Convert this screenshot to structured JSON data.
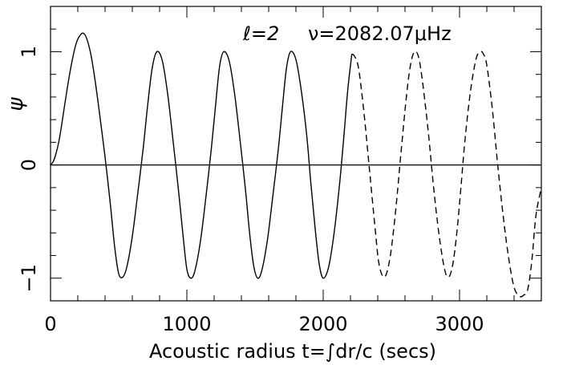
{
  "chart_data": {
    "type": "line",
    "title": "",
    "annotation": {
      "degree_label": "ℓ=2",
      "frequency_label": "ν=2082.07μHz"
    },
    "xlabel": "Acoustic radius t=∫dr/c (secs)",
    "ylabel": "ψ",
    "xlim": [
      0,
      3600
    ],
    "ylim": [
      -1.2,
      1.4
    ],
    "x_ticks": [
      {
        "value": 0,
        "label": "0"
      },
      {
        "value": 1000,
        "label": "1000"
      },
      {
        "value": 2000,
        "label": "2000"
      },
      {
        "value": 3000,
        "label": "3000"
      }
    ],
    "y_ticks": [
      {
        "value": -1,
        "label": "−1"
      },
      {
        "value": 0,
        "label": "0"
      },
      {
        "value": 1,
        "label": "1"
      }
    ],
    "x_minor_step": 200,
    "y_minor_step": 0.2,
    "zero_line": true,
    "grid": false,
    "legend": "none",
    "line_color": "#000000",
    "series": [
      {
        "style": "solid",
        "x": [
          0,
          20,
          40,
          60,
          80,
          100,
          130,
          160,
          190,
          220,
          245,
          270,
          300,
          330,
          360,
          400,
          440,
          470,
          500,
          530,
          560,
          600,
          640,
          680,
          710,
          745,
          780,
          820,
          860,
          900,
          940,
          970,
          1000,
          1030,
          1060,
          1100,
          1140,
          1180,
          1210,
          1240,
          1270,
          1310,
          1350,
          1390,
          1430,
          1460,
          1490,
          1520,
          1550,
          1590,
          1630,
          1670,
          1700,
          1730,
          1760,
          1800,
          1840,
          1880,
          1910,
          1940,
          1970,
          2000,
          2040,
          2080,
          2120,
          2150,
          2180,
          2210
        ],
        "y": [
          0.0,
          0.03,
          0.1,
          0.2,
          0.34,
          0.5,
          0.73,
          0.93,
          1.08,
          1.15,
          1.16,
          1.1,
          0.95,
          0.72,
          0.45,
          0.07,
          -0.36,
          -0.72,
          -0.96,
          -0.99,
          -0.9,
          -0.63,
          -0.25,
          0.15,
          0.5,
          0.85,
          1.0,
          0.92,
          0.62,
          0.2,
          -0.24,
          -0.6,
          -0.92,
          -1.0,
          -0.93,
          -0.67,
          -0.28,
          0.15,
          0.52,
          0.87,
          1.0,
          0.92,
          0.63,
          0.22,
          -0.22,
          -0.6,
          -0.89,
          -1.0,
          -0.93,
          -0.67,
          -0.28,
          0.13,
          0.5,
          0.85,
          1.0,
          0.93,
          0.65,
          0.25,
          -0.17,
          -0.55,
          -0.87,
          -1.0,
          -0.9,
          -0.6,
          -0.17,
          0.23,
          0.66,
          0.98
        ]
      },
      {
        "style": "dashed",
        "x": [
          2210,
          2230,
          2260,
          2300,
          2340,
          2380,
          2410,
          2450,
          2490,
          2530,
          2570,
          2610,
          2640,
          2670,
          2700,
          2730,
          2770,
          2810,
          2850,
          2890,
          2920,
          2950,
          2980,
          3010,
          3040,
          3080,
          3120,
          3150,
          3175,
          3200,
          3240,
          3280,
          3320,
          3360,
          3400,
          3440,
          3470,
          3500,
          3530,
          3560,
          3600
        ],
        "y": [
          0.98,
          0.96,
          0.85,
          0.45,
          -0.05,
          -0.55,
          -0.88,
          -0.99,
          -0.82,
          -0.42,
          0.1,
          0.6,
          0.88,
          1.0,
          0.95,
          0.72,
          0.3,
          -0.2,
          -0.62,
          -0.92,
          -0.99,
          -0.88,
          -0.6,
          -0.2,
          0.22,
          0.65,
          0.93,
          1.0,
          0.98,
          0.88,
          0.5,
          0.0,
          -0.45,
          -0.82,
          -1.08,
          -1.16,
          -1.15,
          -1.1,
          -0.85,
          -0.45,
          -0.2
        ]
      }
    ]
  }
}
